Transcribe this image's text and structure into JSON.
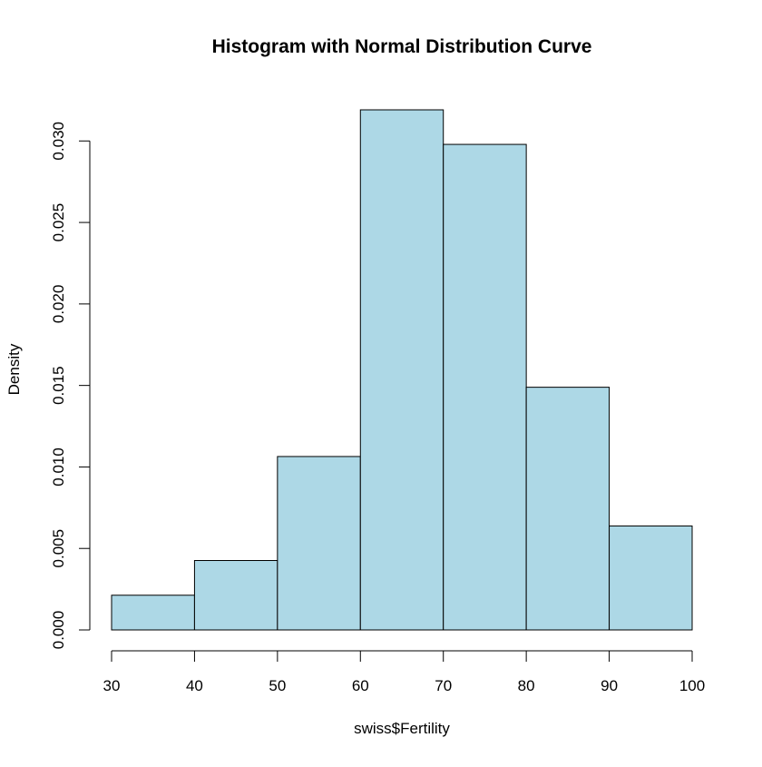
{
  "chart_data": {
    "type": "bar",
    "title": "Histogram with Normal Distribution Curve",
    "xlabel": "swiss$Fertility",
    "ylabel": "Density",
    "bin_edges": [
      30,
      40,
      50,
      60,
      70,
      80,
      90,
      100
    ],
    "values": [
      0.00213,
      0.00426,
      0.01064,
      0.03191,
      0.02979,
      0.01489,
      0.00638
    ],
    "xlim": [
      30,
      100
    ],
    "ylim": [
      0,
      0.03191
    ],
    "x_ticks": [
      30,
      40,
      50,
      60,
      70,
      80,
      90,
      100
    ],
    "y_ticks": [
      0,
      0.005,
      0.01,
      0.015,
      0.02,
      0.025,
      0.03
    ],
    "x_tick_labels": [
      "30",
      "40",
      "50",
      "60",
      "70",
      "80",
      "90",
      "100"
    ],
    "y_tick_labels": [
      "0.000",
      "0.005",
      "0.010",
      "0.015",
      "0.020",
      "0.025",
      "0.030"
    ],
    "grid": false,
    "colors": {
      "bar_fill": "#add8e6",
      "bar_stroke": "#000000",
      "axis": "#000000",
      "background": "#ffffff"
    }
  }
}
